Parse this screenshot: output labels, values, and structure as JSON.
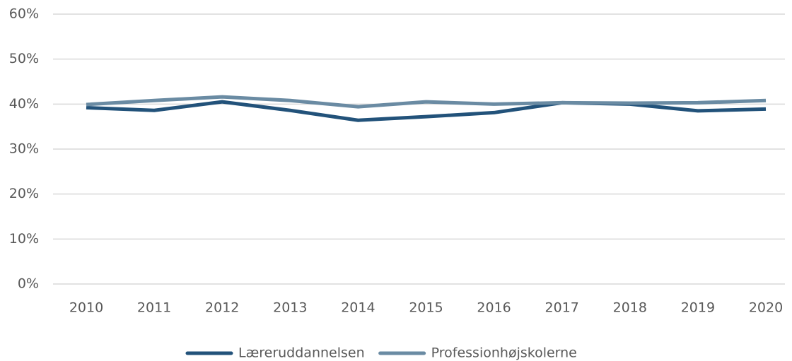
{
  "chart_data": {
    "type": "line",
    "categories": [
      "2010",
      "2011",
      "2012",
      "2013",
      "2014",
      "2015",
      "2016",
      "2017",
      "2018",
      "2019",
      "2020"
    ],
    "series": [
      {
        "name": "Læreruddannelsen",
        "color": "#22527a",
        "values": [
          39.2,
          38.6,
          40.5,
          38.6,
          36.4,
          37.2,
          38.1,
          40.3,
          40.0,
          38.5,
          38.9
        ]
      },
      {
        "name": "Professionhøjskolerne",
        "color": "#6a8ba3",
        "values": [
          39.9,
          40.8,
          41.6,
          40.8,
          39.4,
          40.5,
          40.0,
          40.3,
          40.2,
          40.3,
          40.8
        ]
      }
    ],
    "ylim": [
      0,
      60
    ],
    "yticks": [
      {
        "value": 0,
        "label": "0%"
      },
      {
        "value": 10,
        "label": "10%"
      },
      {
        "value": 20,
        "label": "20%"
      },
      {
        "value": 30,
        "label": "30%"
      },
      {
        "value": 40,
        "label": "40%"
      },
      {
        "value": 50,
        "label": "50%"
      },
      {
        "value": 60,
        "label": "60%"
      }
    ],
    "grid": true,
    "legend": "bottom"
  }
}
